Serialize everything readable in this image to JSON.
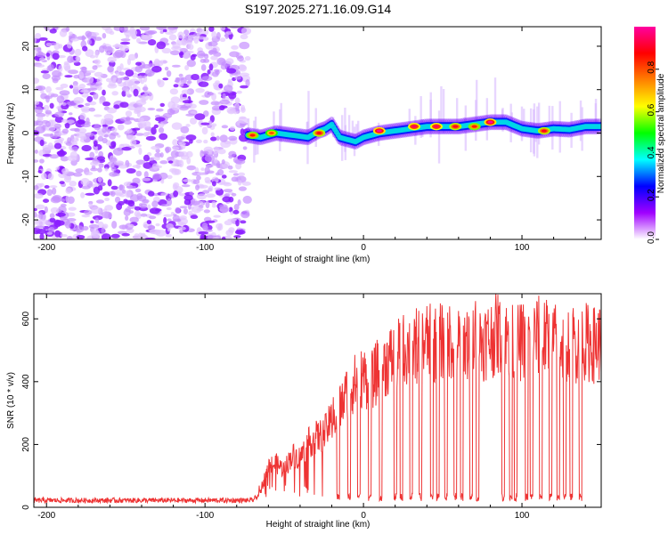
{
  "chart_data": [
    {
      "type": "heatmap",
      "title": "S197.2025.271.16.09.G14",
      "xlabel": "Height of straight line (km)",
      "ylabel": "Frequency (Hz)",
      "xlim": [
        -208,
        150
      ],
      "ylim": [
        -24.5,
        24.5
      ],
      "xticks": [
        -200,
        -100,
        0,
        100
      ],
      "yticks": [
        -20,
        -10,
        0,
        10,
        20
      ],
      "noise_region_x": [
        -208,
        -73
      ],
      "ridge": {
        "x": [
          -73,
          -65,
          -55,
          -45,
          -35,
          -28,
          -24,
          -20,
          -15,
          -10,
          -5,
          0,
          10,
          20,
          30,
          40,
          50,
          60,
          70,
          80,
          90,
          100,
          110,
          120,
          130,
          140,
          150
        ],
        "y": [
          -0.5,
          -1,
          0,
          -0.5,
          -1,
          0.5,
          1,
          2,
          -1,
          -1.5,
          -2,
          -1,
          0,
          0.5,
          1,
          1.5,
          1.5,
          1.5,
          2,
          2.5,
          2.5,
          1,
          0.5,
          1,
          0.8,
          1.5,
          1.5
        ]
      },
      "peaks": [
        {
          "x": -70,
          "y": -0.5,
          "amp": 0.85
        },
        {
          "x": -58,
          "y": 0,
          "amp": 0.8
        },
        {
          "x": -28,
          "y": 0,
          "amp": 0.9
        },
        {
          "x": 10,
          "y": 0.5,
          "amp": 1.0
        },
        {
          "x": 32,
          "y": 1.5,
          "amp": 0.95
        },
        {
          "x": 46,
          "y": 1.5,
          "amp": 0.95
        },
        {
          "x": 58,
          "y": 1.5,
          "amp": 0.9
        },
        {
          "x": 70,
          "y": 1.5,
          "amp": 0.85
        },
        {
          "x": 80,
          "y": 2.5,
          "amp": 1.0
        },
        {
          "x": 114,
          "y": 0.5,
          "amp": 0.9
        }
      ],
      "colorbar": {
        "label": "Normalized spectral amplitude",
        "range": [
          0,
          1
        ],
        "ticks": [
          0.0,
          0.2,
          0.4,
          0.6,
          0.8
        ],
        "tick_labels": [
          "0.0",
          "0.2",
          "0.4",
          "0.6",
          "0.8"
        ],
        "colors": [
          "#ffffff",
          "#a000ff",
          "#0000ff",
          "#00ffff",
          "#00ff00",
          "#ffff00",
          "#ff8000",
          "#ff0000",
          "#ff00a0"
        ]
      }
    },
    {
      "type": "line",
      "xlabel": "Height of straight line (km)",
      "ylabel": "SNR (10 * v/v)",
      "xlim": [
        -208,
        150
      ],
      "ylim": [
        0,
        680
      ],
      "xticks": [
        -200,
        -100,
        0,
        100
      ],
      "yticks": [
        0,
        200,
        400,
        600
      ],
      "color": "#ee3333",
      "series": [
        {
          "name": "SNR",
          "x": [
            -208,
            -180,
            -150,
            -120,
            -90,
            -70,
            -66,
            -60,
            -55,
            -50,
            -45,
            -40,
            -35,
            -30,
            -25,
            -20,
            -15,
            -10,
            -5,
            0,
            5,
            10,
            15,
            20,
            25,
            30,
            35,
            40,
            45,
            50,
            55,
            60,
            65,
            70,
            75,
            80,
            85,
            90,
            95,
            100,
            105,
            110,
            115,
            120,
            125,
            130,
            135,
            140,
            145,
            150
          ],
          "y": [
            22,
            22,
            22,
            22,
            22,
            22,
            40,
            140,
            150,
            130,
            180,
            170,
            220,
            240,
            250,
            300,
            340,
            400,
            430,
            450,
            430,
            480,
            500,
            520,
            540,
            550,
            560,
            570,
            560,
            570,
            580,
            560,
            570,
            580,
            570,
            580,
            600,
            580,
            560,
            570,
            580,
            590,
            580,
            570,
            560,
            570,
            560,
            570,
            560,
            570
          ],
          "dips": [
            -16,
            -9,
            -3,
            4,
            11,
            20,
            24,
            30,
            36,
            43,
            47,
            52,
            58,
            62,
            68,
            72,
            88,
            93,
            96,
            103,
            106,
            112,
            118,
            123,
            127,
            131,
            137
          ]
        }
      ]
    }
  ]
}
